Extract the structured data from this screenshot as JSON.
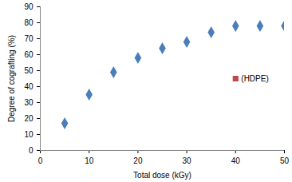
{
  "chart_data": {
    "type": "scatter",
    "x_label": "Total dose (kGy)",
    "y_label": "Degree of cografting (%)",
    "x": [
      5,
      10,
      15,
      20,
      25,
      30,
      35,
      40,
      45,
      50
    ],
    "series": [
      {
        "color": "#4a7ebb",
        "marker": "diamond",
        "values": [
          17,
          35,
          49,
          58,
          64,
          68,
          74,
          78,
          78,
          78
        ]
      },
      {
        "name": "(HDPE)",
        "color": "#be4b48",
        "marker": "square",
        "values": [
          null,
          null,
          null,
          null,
          null,
          null,
          null,
          45,
          null,
          null
        ]
      }
    ],
    "xlim": [
      0,
      50
    ],
    "xticks": [
      0,
      10,
      20,
      30,
      40,
      50
    ],
    "ylim": [
      0,
      90
    ],
    "yticks": [
      0,
      10,
      20,
      30,
      40,
      50,
      60,
      70,
      80,
      90
    ],
    "grid": false
  }
}
